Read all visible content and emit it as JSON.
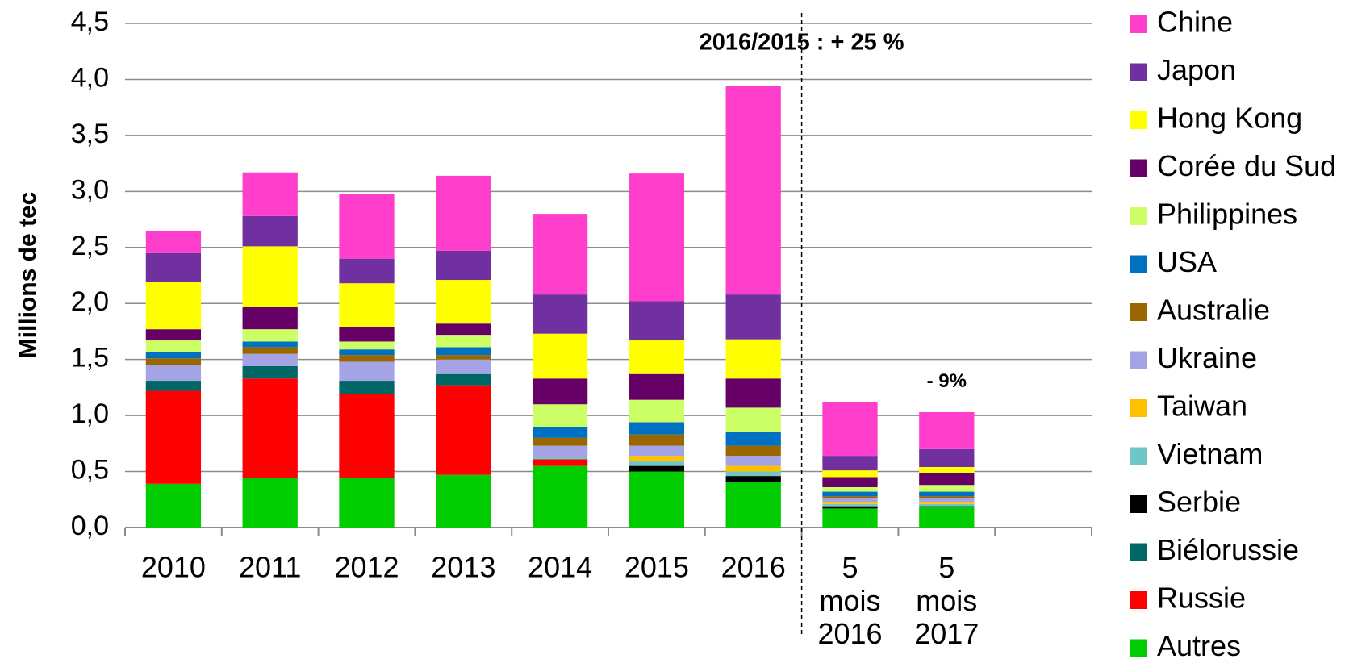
{
  "chart_data": {
    "type": "stacked_bar",
    "ylabel": "Millions de tec",
    "annotations": [
      "2016/2015 : + 25 %",
      "- 9%"
    ],
    "categories": [
      "2010",
      "2011",
      "2012",
      "2013",
      "2014",
      "2015",
      "2016",
      "5 mois 2016",
      "5 mois 2017",
      null
    ],
    "ylim": [
      0,
      4.5
    ],
    "yticks": [
      {
        "value": 0,
        "label": "0,0"
      },
      {
        "value": 0.5,
        "label": "0,5"
      },
      {
        "value": 1,
        "label": "1,0"
      },
      {
        "value": 1.5,
        "label": "1,5"
      },
      {
        "value": 2,
        "label": "2,0"
      },
      {
        "value": 2.5,
        "label": "2,5"
      },
      {
        "value": 3,
        "label": "3,0"
      },
      {
        "value": 3.5,
        "label": "3,5"
      },
      {
        "value": 4,
        "label": "4,0"
      },
      {
        "value": 4.5,
        "label": "4,5"
      }
    ],
    "grid": true,
    "legend": "right",
    "series": [
      {
        "name": "Autres",
        "color": "#00cc00",
        "values": [
          0.39,
          0.44,
          0.44,
          0.47,
          0.55,
          0.5,
          0.41,
          0.17,
          0.18,
          null
        ]
      },
      {
        "name": "Russie",
        "color": "#ff0000",
        "values": [
          0.83,
          0.89,
          0.75,
          0.8,
          0.06,
          0,
          0,
          0,
          0,
          null
        ]
      },
      {
        "name": "Biélorussie",
        "color": "#006666",
        "values": [
          0.09,
          0.11,
          0.12,
          0.1,
          0,
          0,
          0,
          0,
          0,
          null
        ]
      },
      {
        "name": "Serbie",
        "color": "#000000",
        "values": [
          0,
          0,
          0,
          0,
          0,
          0.05,
          0.05,
          0.02,
          0.01,
          null
        ]
      },
      {
        "name": "Vietnam",
        "color": "#6fc6c6",
        "values": [
          0,
          0,
          0,
          0,
          0.02,
          0.04,
          0.04,
          0.02,
          0.02,
          null
        ]
      },
      {
        "name": "Taiwan",
        "color": "#ffc000",
        "values": [
          0,
          0,
          0,
          0,
          0,
          0.05,
          0.05,
          0.02,
          0.02,
          null
        ]
      },
      {
        "name": "Ukraine",
        "color": "#a3a3e6",
        "values": [
          0.14,
          0.11,
          0.17,
          0.13,
          0.1,
          0.09,
          0.09,
          0.03,
          0.03,
          null
        ]
      },
      {
        "name": "Australie",
        "color": "#996600",
        "values": [
          0.06,
          0.06,
          0.06,
          0.04,
          0.07,
          0.1,
          0.09,
          0.02,
          0.02,
          null
        ]
      },
      {
        "name": "USA",
        "color": "#0070c0",
        "values": [
          0.06,
          0.05,
          0.05,
          0.07,
          0.1,
          0.11,
          0.12,
          0.04,
          0.04,
          null
        ]
      },
      {
        "name": "Philippines",
        "color": "#ccff66",
        "values": [
          0.1,
          0.11,
          0.07,
          0.11,
          0.2,
          0.2,
          0.22,
          0.04,
          0.06,
          null
        ]
      },
      {
        "name": "Corée du Sud",
        "color": "#660066",
        "values": [
          0.1,
          0.2,
          0.13,
          0.1,
          0.23,
          0.23,
          0.26,
          0.09,
          0.11,
          null
        ]
      },
      {
        "name": "Hong Kong",
        "color": "#ffff00",
        "values": [
          0.42,
          0.54,
          0.39,
          0.39,
          0.4,
          0.3,
          0.35,
          0.06,
          0.05,
          null
        ]
      },
      {
        "name": "Japon",
        "color": "#7030a0",
        "values": [
          0.26,
          0.27,
          0.22,
          0.26,
          0.35,
          0.35,
          0.4,
          0.13,
          0.16,
          null
        ]
      },
      {
        "name": "Chine",
        "color": "#ff3fcc",
        "values": [
          0.2,
          0.39,
          0.58,
          0.67,
          0.72,
          1.14,
          1.86,
          0.48,
          0.33,
          null
        ]
      }
    ]
  }
}
